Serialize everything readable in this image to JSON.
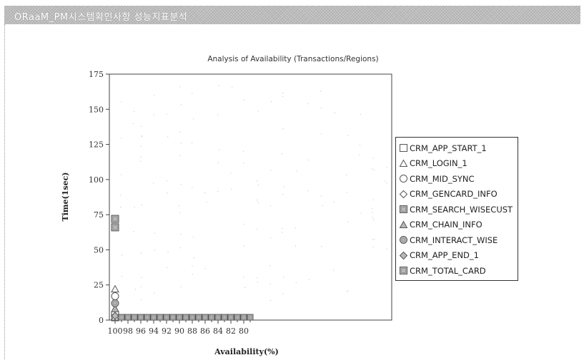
{
  "header": {
    "title": "ORaaM_PM시스템확인사항 성능지표분석"
  },
  "chart_data": {
    "type": "scatter",
    "title": "Analysis of Availability (Transactions/Regions)",
    "xlabel": "Availability(%)",
    "ylabel": "Time(1sec)",
    "xlim": [
      100,
      78
    ],
    "ylim": [
      0,
      175
    ],
    "x_ticks": [
      "100",
      "98",
      "96",
      "94",
      "92",
      "90",
      "88",
      "86",
      "84",
      "82",
      "80"
    ],
    "y_ticks": [
      "0",
      "25",
      "50",
      "75",
      "100",
      "125",
      "150",
      "175"
    ],
    "legend_position": "right",
    "series": [
      {
        "name": "CRM_APP_START_1",
        "marker": "square",
        "fill": "none",
        "points": [
          [
            100,
            2
          ]
        ]
      },
      {
        "name": "CRM_LOGIN_1",
        "marker": "triangle",
        "fill": "none",
        "points": [
          [
            100,
            22
          ],
          [
            100,
            2
          ]
        ]
      },
      {
        "name": "CRM_MID_SYNC",
        "marker": "circle",
        "fill": "none",
        "points": [
          [
            100,
            17
          ],
          [
            100,
            5
          ]
        ]
      },
      {
        "name": "CRM_GENCARD_INFO",
        "marker": "diamond",
        "fill": "none",
        "points": [
          [
            100,
            3
          ]
        ]
      },
      {
        "name": "CRM_SEARCH_WISECUST",
        "marker": "square",
        "fill": "gray",
        "points": [
          [
            100,
            72
          ],
          [
            100,
            66
          ]
        ]
      },
      {
        "name": "CRM_CHAIN_INFO",
        "marker": "triangle",
        "fill": "gray",
        "points": [
          [
            100,
            8
          ]
        ]
      },
      {
        "name": "CRM_INTERACT_WISE",
        "marker": "circle",
        "fill": "gray",
        "points": [
          [
            100,
            12
          ]
        ]
      },
      {
        "name": "CRM_APP_END_1",
        "marker": "diamond",
        "fill": "gray",
        "points": [
          [
            100,
            3
          ]
        ]
      },
      {
        "name": "CRM_TOTAL_CARD",
        "marker": "square",
        "fill": "gray",
        "points": [
          [
            99,
            2
          ],
          [
            98,
            2
          ],
          [
            97,
            2
          ],
          [
            96,
            2
          ],
          [
            95,
            2
          ],
          [
            94,
            2
          ],
          [
            93,
            2
          ],
          [
            92,
            2
          ],
          [
            91,
            2
          ],
          [
            90,
            2
          ],
          [
            89,
            2
          ],
          [
            88,
            2
          ],
          [
            87,
            2
          ],
          [
            86,
            2
          ],
          [
            85,
            2
          ],
          [
            84,
            2
          ],
          [
            83,
            2
          ],
          [
            82,
            2
          ],
          [
            81,
            2
          ],
          [
            80,
            2
          ],
          [
            79,
            2
          ]
        ]
      }
    ]
  }
}
